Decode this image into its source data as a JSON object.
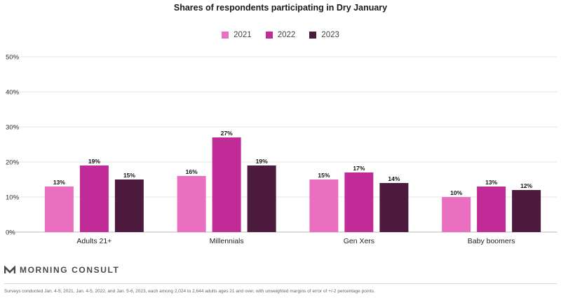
{
  "chart_data": {
    "type": "bar",
    "title": "Shares of respondents participating in Dry January",
    "categories": [
      "Adults 21+",
      "Millennials",
      "Gen Xers",
      "Baby boomers"
    ],
    "series": [
      {
        "name": "2021",
        "color": "#ea6fc0",
        "values": [
          13,
          16,
          15,
          10
        ]
      },
      {
        "name": "2022",
        "color": "#c12b97",
        "values": [
          19,
          27,
          17,
          13
        ]
      },
      {
        "name": "2023",
        "color": "#4c1a3d",
        "values": [
          15,
          19,
          14,
          12
        ]
      }
    ],
    "ylim": [
      0,
      50
    ],
    "yticks": [
      0,
      10,
      20,
      30,
      40,
      50
    ],
    "ytick_format": "{v}%",
    "data_label_format": "{v}%",
    "xlabel": "",
    "ylabel": "",
    "grid": true,
    "legend_position": "top-center"
  },
  "branding": {
    "logo_text": "MORNING CONSULT",
    "logo_mark_color": "#4a4a4a"
  },
  "footnote": "Surveys conducted Jan. 4-5, 2021, Jan. 4-5, 2022, and Jan. 5-6, 2023, each among 2,024 to 2,644 adults ages 21 and over, with unweighted margins of error of +/-2 percentage points."
}
